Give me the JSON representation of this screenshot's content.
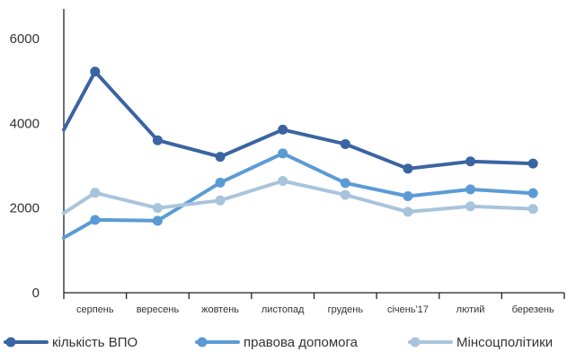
{
  "chart_data": {
    "type": "line",
    "categories": [
      "серпень",
      "вересень",
      "жовтень",
      "листопад",
      "грудень",
      "січень'17",
      "лютий",
      "березень"
    ],
    "ylim": [
      0,
      6000
    ],
    "yticks": [
      "0",
      "2000",
      "4000",
      "6000"
    ],
    "grid": false,
    "legend_position": "bottom",
    "series": [
      {
        "name": "кількість ВПО",
        "color": "#3a64a2",
        "start": 3850,
        "values": [
          5220,
          3600,
          3210,
          3850,
          3510,
          2930,
          3100,
          3050
        ]
      },
      {
        "name": "правова допомога",
        "color": "#5b9bd5",
        "start": 1300,
        "values": [
          1720,
          1700,
          2600,
          3290,
          2590,
          2280,
          2440,
          2350
        ]
      },
      {
        "name": "Мінсоцполітики",
        "color": "#a8c4dc",
        "start": 1880,
        "values": [
          2360,
          2000,
          2180,
          2640,
          2310,
          1910,
          2040,
          1980
        ]
      }
    ]
  }
}
